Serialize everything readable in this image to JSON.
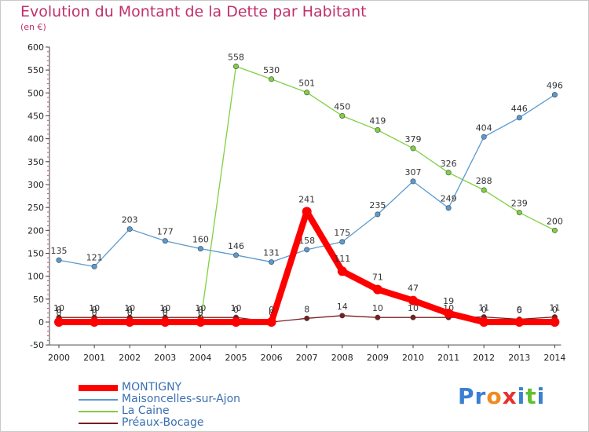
{
  "header": {
    "title": "Evolution du Montant de la Dette par Habitant",
    "unit": "(en €)"
  },
  "chart_data": {
    "type": "line",
    "title": "Evolution du Montant de la Dette par Habitant",
    "subtitle": "(en €)",
    "x": [
      2000,
      2001,
      2002,
      2003,
      2004,
      2005,
      2006,
      2007,
      2008,
      2009,
      2010,
      2011,
      2012,
      2013,
      2014
    ],
    "ylim": [
      -50,
      600
    ],
    "yticks": [
      -50,
      0,
      50,
      100,
      150,
      200,
      250,
      300,
      350,
      400,
      450,
      500,
      550,
      600
    ],
    "grid": false,
    "legend_position": "bottom-left",
    "series": [
      {
        "name": "Préaux-Bocage",
        "color": "#7a1e1e",
        "values": [
          10,
          10,
          10,
          10,
          10,
          10,
          0,
          8,
          14,
          10,
          10,
          10,
          11,
          6,
          11
        ],
        "labels": [
          "10",
          "10",
          "10",
          "10",
          "10",
          "10",
          "0",
          "8",
          "14",
          "10",
          "10",
          "10",
          "11",
          "6",
          "11"
        ]
      },
      {
        "name": "La Caine",
        "color": "#80d040",
        "values": [
          0,
          0,
          0,
          0,
          0,
          558,
          530,
          501,
          450,
          419,
          379,
          326,
          288,
          239,
          200
        ],
        "labels": [
          "0",
          "0",
          "0",
          "0",
          "0",
          "558",
          "530",
          "501",
          "450",
          "419",
          "379",
          "326",
          "288",
          "239",
          "200"
        ]
      },
      {
        "name": "Maisoncelles-sur-Ajon",
        "color": "#5a9ad0",
        "values": [
          135,
          121,
          203,
          177,
          160,
          146,
          131,
          158,
          175,
          235,
          307,
          249,
          404,
          446,
          496
        ],
        "labels": [
          "135",
          "121",
          "203",
          "177",
          "160",
          "146",
          "131",
          "158",
          "175",
          "235",
          "307",
          "249",
          "404",
          "446",
          "496"
        ]
      },
      {
        "name": "MONTIGNY",
        "color": "#ff0000",
        "values": [
          0,
          0,
          0,
          0,
          0,
          0,
          0,
          241,
          111,
          71,
          47,
          19,
          0,
          0,
          0
        ],
        "labels": [
          "0",
          "0",
          "0",
          "0",
          "0",
          "0",
          "0",
          "241",
          "111",
          "71",
          "47",
          "19",
          "0",
          "0",
          "0"
        ]
      }
    ]
  },
  "legend": {
    "items": [
      {
        "label": "MONTIGNY",
        "color": "#ff0000"
      },
      {
        "label": "Maisoncelles-sur-Ajon",
        "color": "#5a9ad0"
      },
      {
        "label": "La Caine",
        "color": "#80d040"
      },
      {
        "label": "Préaux-Bocage",
        "color": "#7a1e1e"
      }
    ]
  },
  "logo": {
    "letters": [
      {
        "ch": "P",
        "color": "#3a7fd0"
      },
      {
        "ch": "r",
        "color": "#3a7fd0"
      },
      {
        "ch": "o",
        "color": "#f08a20"
      },
      {
        "ch": "x",
        "color": "#e83030"
      },
      {
        "ch": "i",
        "color": "#3a7fd0"
      },
      {
        "ch": "t",
        "color": "#60c030"
      },
      {
        "ch": "i",
        "color": "#3a7fd0"
      }
    ]
  }
}
